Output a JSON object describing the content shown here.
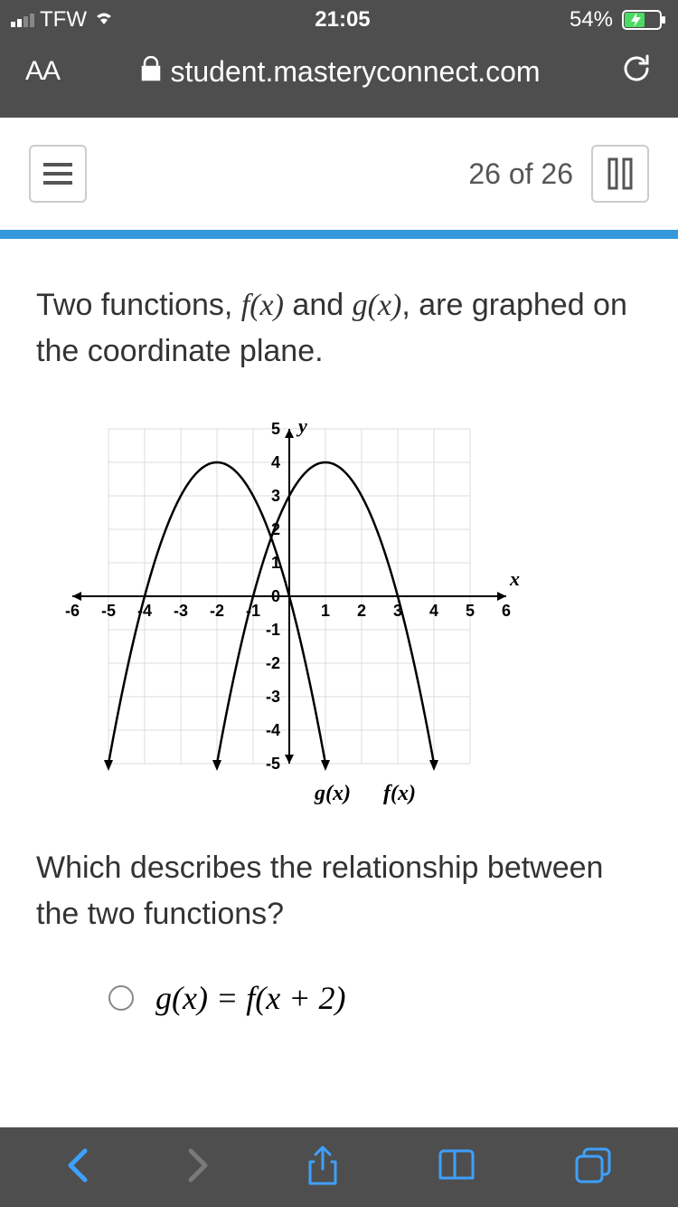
{
  "status": {
    "carrier": "TFW",
    "time": "21:05",
    "battery_pct": "54%",
    "battery_color": "#4cd964"
  },
  "browser": {
    "text_size_label": "AA",
    "domain": "student.masteryconnect.com"
  },
  "header": {
    "progress": "26 of 26"
  },
  "question": {
    "intro_p1": "Two functions, ",
    "fx": "f(x)",
    "intro_p2": " and ",
    "gx": "g(x)",
    "intro_p3": ", are graphed on the coordinate plane.",
    "followup": "Which describes the relationship between the two functions?"
  },
  "graph": {
    "x_label": "x",
    "y_label": "y",
    "xlim": [
      -6,
      6
    ],
    "ylim": [
      -5,
      5
    ],
    "xtick_step": 1,
    "ytick_step": 1,
    "x_ticks": [
      "-6",
      "-5",
      "-4",
      "-3",
      "-2",
      "-1",
      "",
      "1",
      "2",
      "3",
      "4",
      "5",
      "6"
    ],
    "y_ticks": [
      "5",
      "4",
      "3",
      "2",
      "1",
      "0",
      "-1",
      "-2",
      "-3",
      "-4",
      "-5"
    ],
    "grid_xmin": -5,
    "grid_xmax": 5,
    "background_color": "#ffffff",
    "grid_color": "#dddddd",
    "axis_color": "#000000",
    "line_color": "#000000",
    "line_width": 2,
    "curves": {
      "f": {
        "label": "f(x)",
        "vertex_x": 1,
        "vertex_y": 4,
        "a": -1
      },
      "g": {
        "label": "g(x)",
        "vertex_x": -2,
        "vertex_y": 4,
        "a": -1
      }
    }
  },
  "option_a": {
    "formula": "g(x) = f(x + 2)"
  },
  "colors": {
    "chrome_bg": "#4e4e4e",
    "progress_bar": "#3498db",
    "toolbar_active": "#3ea0fc",
    "toolbar_disabled": "#7a7a7a",
    "text": "#333333",
    "border": "#cccccc"
  }
}
